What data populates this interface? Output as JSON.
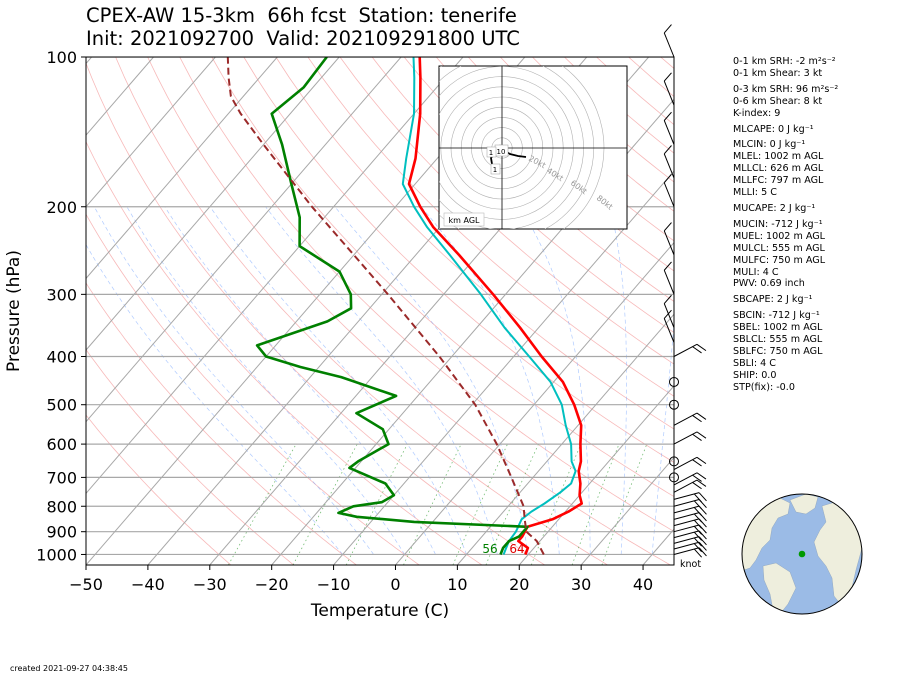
{
  "title_line1": "CPEX-AW 15-3km  66h fcst  Station: tenerife",
  "title_line2": "Init: 2021092700  Valid: 202109291800 UTC",
  "created": "created 2021-09-27 04:38:45",
  "knot_label": "knot",
  "hodograph": {
    "label": "km AGL",
    "ring_labels": [
      "20kt",
      "40kt",
      "60kt",
      "80kt"
    ],
    "height_labels": [
      "10",
      "1",
      "1"
    ]
  },
  "indices": [
    "0-1 km SRH: -2 m²s⁻²",
    "0-1 km Shear: 3 kt",
    "0-3 km SRH: 96 m²s⁻²",
    "0-6 km Shear: 8 kt",
    "K-index: 9",
    "MLCAPE: 0 J kg⁻¹",
    "MLCIN: 0 J kg⁻¹",
    "MLEL: 1002 m AGL",
    "MLLCL: 626 m AGL",
    "MLLFC: 797 m AGL",
    "MLLI: 5 C",
    "MUCAPE: 2 J kg⁻¹",
    "MUCIN: -712 J kg⁻¹",
    "MUEL: 1002 m AGL",
    "MULCL: 555 m AGL",
    "MULFC: 750 m AGL",
    "MULI: 4 C",
    "PWV: 0.69 inch",
    "SBCAPE: 2 J kg⁻¹",
    "SBCIN: -712 J kg⁻¹",
    "SBEL: 1002 m AGL",
    "SBLCL: 555 m AGL",
    "SBLFC: 750 m AGL",
    "SBLI: 4 C",
    "SHIP: 0.0",
    "STP(fix): -0.0"
  ],
  "colors": {
    "temperature": "#ff0000",
    "dewpoint": "#008000",
    "virtual_temp": "#00bfbf",
    "parcel": "#9b2a2a",
    "ocean": "#9bbbe6",
    "land": "#eeeedd",
    "station": "#009900"
  },
  "chart_data": {
    "type": "line",
    "subtype": "skew-T log-p",
    "xlabel": "Temperature (C)",
    "ylabel": "Pressure (hPa)",
    "xlim": [
      -50,
      45
    ],
    "ylim": [
      1050,
      100
    ],
    "y_scale": "log",
    "x_ticks": [
      -50,
      -40,
      -30,
      -20,
      -10,
      0,
      10,
      20,
      30,
      40
    ],
    "x_tick_labels": [
      "−50",
      "−40",
      "−30",
      "−20",
      "−10",
      "0",
      "10",
      "20",
      "30",
      "40"
    ],
    "y_ticks": [
      100,
      200,
      300,
      400,
      500,
      600,
      700,
      800,
      900,
      1000
    ],
    "y_tick_labels": [
      "100",
      "200",
      "300",
      "400",
      "500",
      "600",
      "700",
      "800",
      "900",
      "1000"
    ],
    "surface_labels": {
      "dewpoint": "56",
      "temperature": "64"
    },
    "series": [
      {
        "key": "temperature",
        "points": [
          [
            1000,
            19.5
          ],
          [
            970,
            19.0
          ],
          [
            940,
            16.5
          ],
          [
            920,
            16.5
          ],
          [
            880,
            16.0
          ],
          [
            850,
            19.0
          ],
          [
            820,
            20.5
          ],
          [
            790,
            21.5
          ],
          [
            760,
            20.0
          ],
          [
            720,
            18.5
          ],
          [
            680,
            16.5
          ],
          [
            650,
            15.5
          ],
          [
            600,
            13.0
          ],
          [
            550,
            10.5
          ],
          [
            500,
            6.5
          ],
          [
            450,
            1.5
          ],
          [
            400,
            -5.5
          ],
          [
            350,
            -13.0
          ],
          [
            300,
            -22.0
          ],
          [
            250,
            -33.0
          ],
          [
            220,
            -41.0
          ],
          [
            200,
            -46.0
          ],
          [
            180,
            -51.0
          ],
          [
            160,
            -53.5
          ],
          [
            130,
            -59.0
          ],
          [
            110,
            -64.0
          ],
          [
            100,
            -67.0
          ]
        ]
      },
      {
        "key": "virtual_temp",
        "points": [
          [
            1000,
            16.0
          ],
          [
            970,
            15.5
          ],
          [
            940,
            15.0
          ],
          [
            900,
            14.8
          ],
          [
            850,
            14.0
          ],
          [
            820,
            14.5
          ],
          [
            790,
            15.5
          ],
          [
            750,
            16.5
          ],
          [
            720,
            17.0
          ],
          [
            680,
            16.0
          ],
          [
            650,
            14.0
          ],
          [
            600,
            11.5
          ],
          [
            550,
            8.0
          ],
          [
            500,
            4.5
          ],
          [
            450,
            -0.5
          ],
          [
            400,
            -7.5
          ],
          [
            350,
            -15.5
          ],
          [
            300,
            -24.0
          ],
          [
            250,
            -34.5
          ],
          [
            220,
            -42.0
          ],
          [
            200,
            -47.0
          ],
          [
            180,
            -52.0
          ],
          [
            160,
            -55.0
          ],
          [
            130,
            -60.0
          ],
          [
            110,
            -65.0
          ],
          [
            100,
            -68.0
          ]
        ]
      },
      {
        "key": "dewpoint",
        "points": [
          [
            1000,
            15.5
          ],
          [
            970,
            15.0
          ],
          [
            940,
            15.0
          ],
          [
            920,
            16.0
          ],
          [
            880,
            16.0
          ],
          [
            860,
            -3.0
          ],
          [
            840,
            -13.0
          ],
          [
            825,
            -16.5
          ],
          [
            800,
            -15.0
          ],
          [
            785,
            -11.0
          ],
          [
            760,
            -10.0
          ],
          [
            720,
            -13.0
          ],
          [
            670,
            -21.0
          ],
          [
            650,
            -20.5
          ],
          [
            600,
            -18.0
          ],
          [
            560,
            -21.0
          ],
          [
            520,
            -27.5
          ],
          [
            480,
            -23.5
          ],
          [
            440,
            -35.0
          ],
          [
            420,
            -43.0
          ],
          [
            400,
            -50.0
          ],
          [
            380,
            -53.0
          ],
          [
            340,
            -45.0
          ],
          [
            320,
            -43.0
          ],
          [
            300,
            -45.0
          ],
          [
            270,
            -50.0
          ],
          [
            240,
            -60.0
          ],
          [
            210,
            -64.0
          ],
          [
            180,
            -70.0
          ],
          [
            150,
            -77.0
          ],
          [
            130,
            -83.0
          ],
          [
            115,
            -81.5
          ],
          [
            100,
            -82.0
          ]
        ]
      },
      {
        "key": "parcel",
        "dashed": true,
        "points": [
          [
            1000,
            22.5
          ],
          [
            940,
            19.5
          ],
          [
            900,
            16.5
          ],
          [
            850,
            14.5
          ],
          [
            800,
            12.5
          ],
          [
            700,
            6.5
          ],
          [
            600,
            -0.5
          ],
          [
            500,
            -9.5
          ],
          [
            400,
            -22.0
          ],
          [
            300,
            -39.0
          ],
          [
            250,
            -50.0
          ],
          [
            200,
            -63.5
          ],
          [
            150,
            -80.0
          ],
          [
            130,
            -88.0
          ],
          [
            120,
            -92.0
          ],
          [
            110,
            -95.0
          ],
          [
            100,
            -98.0
          ]
        ]
      }
    ],
    "wind_barbs_pressure": [
      1000,
      975,
      950,
      925,
      900,
      875,
      850,
      825,
      800,
      775,
      750,
      725,
      700,
      675,
      650,
      600,
      550,
      500,
      450,
      400,
      375,
      350,
      300,
      250,
      200,
      175,
      150,
      125,
      100
    ]
  }
}
